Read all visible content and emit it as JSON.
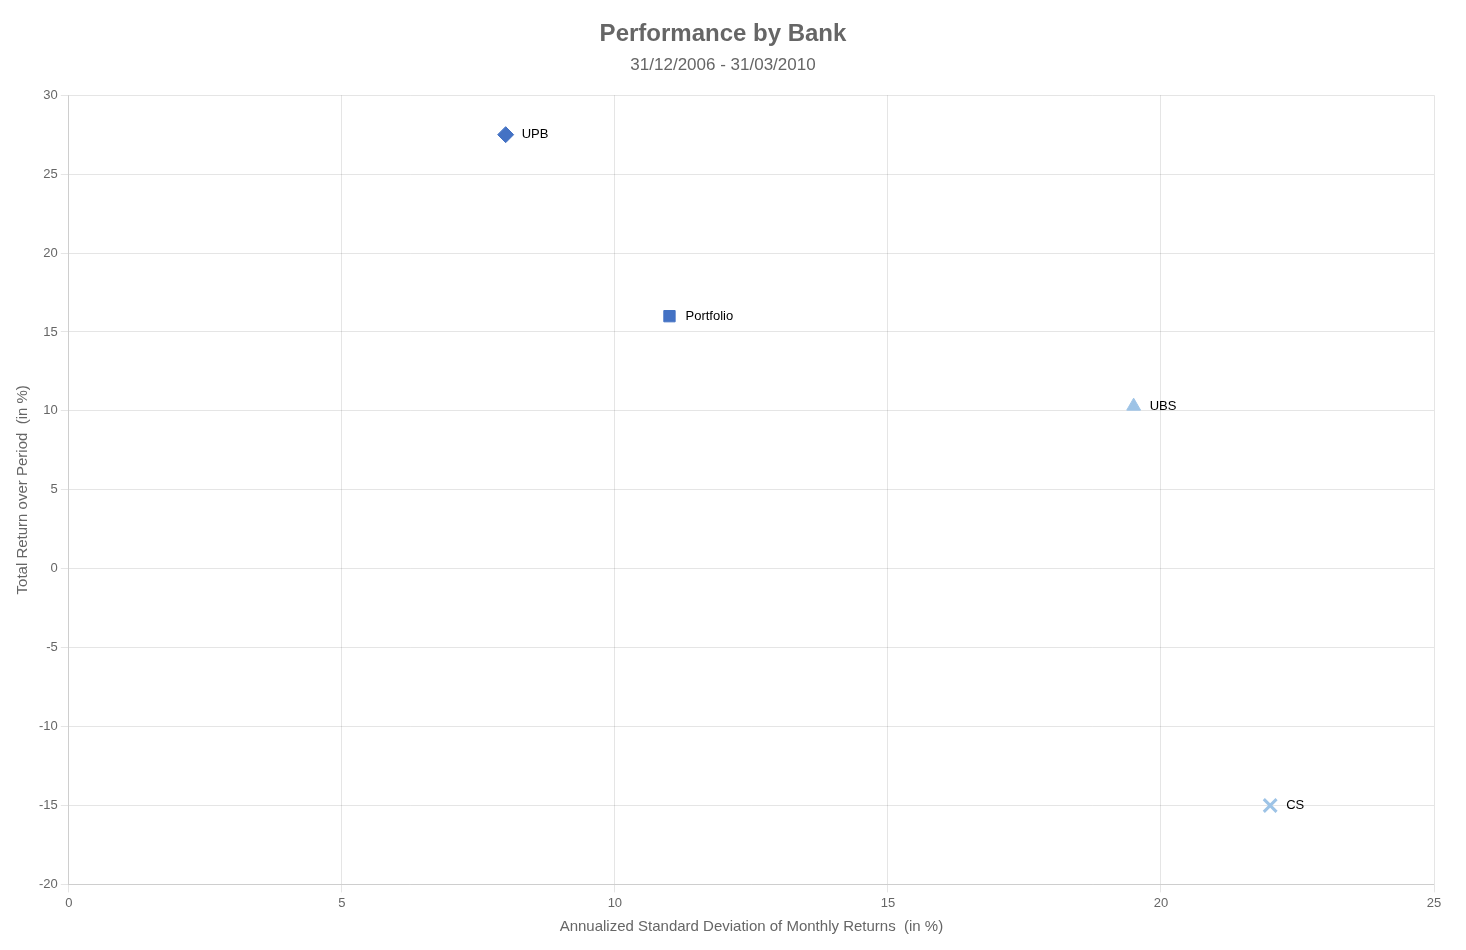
{
  "chart_data": {
    "type": "scatter",
    "title": "Performance by Bank",
    "subtitle": "31/12/2006 - 31/03/2010",
    "xlabel": "Annualized Standard Deviation of Monthly Returns  (in %)",
    "ylabel": "Total Return over Period  (in %)",
    "series": [
      {
        "color": "#4472C4",
        "marker": "diamond",
        "x": [
          8.0
        ],
        "values": [
          27.5
        ]
      },
      {
        "color": "#4472C4",
        "marker": "square",
        "x": [
          11.0
        ],
        "values": [
          16.0
        ]
      },
      {
        "color": "#9DC3E6",
        "marker": "triangle",
        "x": [
          19.5
        ],
        "values": [
          10.3
        ]
      },
      {
        "color": "#9DC3E6",
        "marker": "x",
        "x": [
          22.0
        ],
        "values": [
          -15.0
        ]
      }
    ],
    "annotations": [
      {
        "text": "UPB",
        "x": 8.0,
        "y": 27.5
      },
      {
        "text": "Portfolio",
        "x": 11.0,
        "y": 16.0
      },
      {
        "text": "UBS",
        "x": 19.5,
        "y": 10.3
      },
      {
        "text": "CS",
        "x": 22.0,
        "y": -15.0
      }
    ],
    "xlim": [
      0,
      25
    ],
    "ylim": [
      -20,
      30
    ],
    "xticks": [
      0,
      5,
      10,
      15,
      20,
      25
    ],
    "yticks": [
      -20,
      -15,
      -10,
      -5,
      0,
      5,
      10,
      15,
      20,
      25,
      30
    ],
    "grid": true
  }
}
